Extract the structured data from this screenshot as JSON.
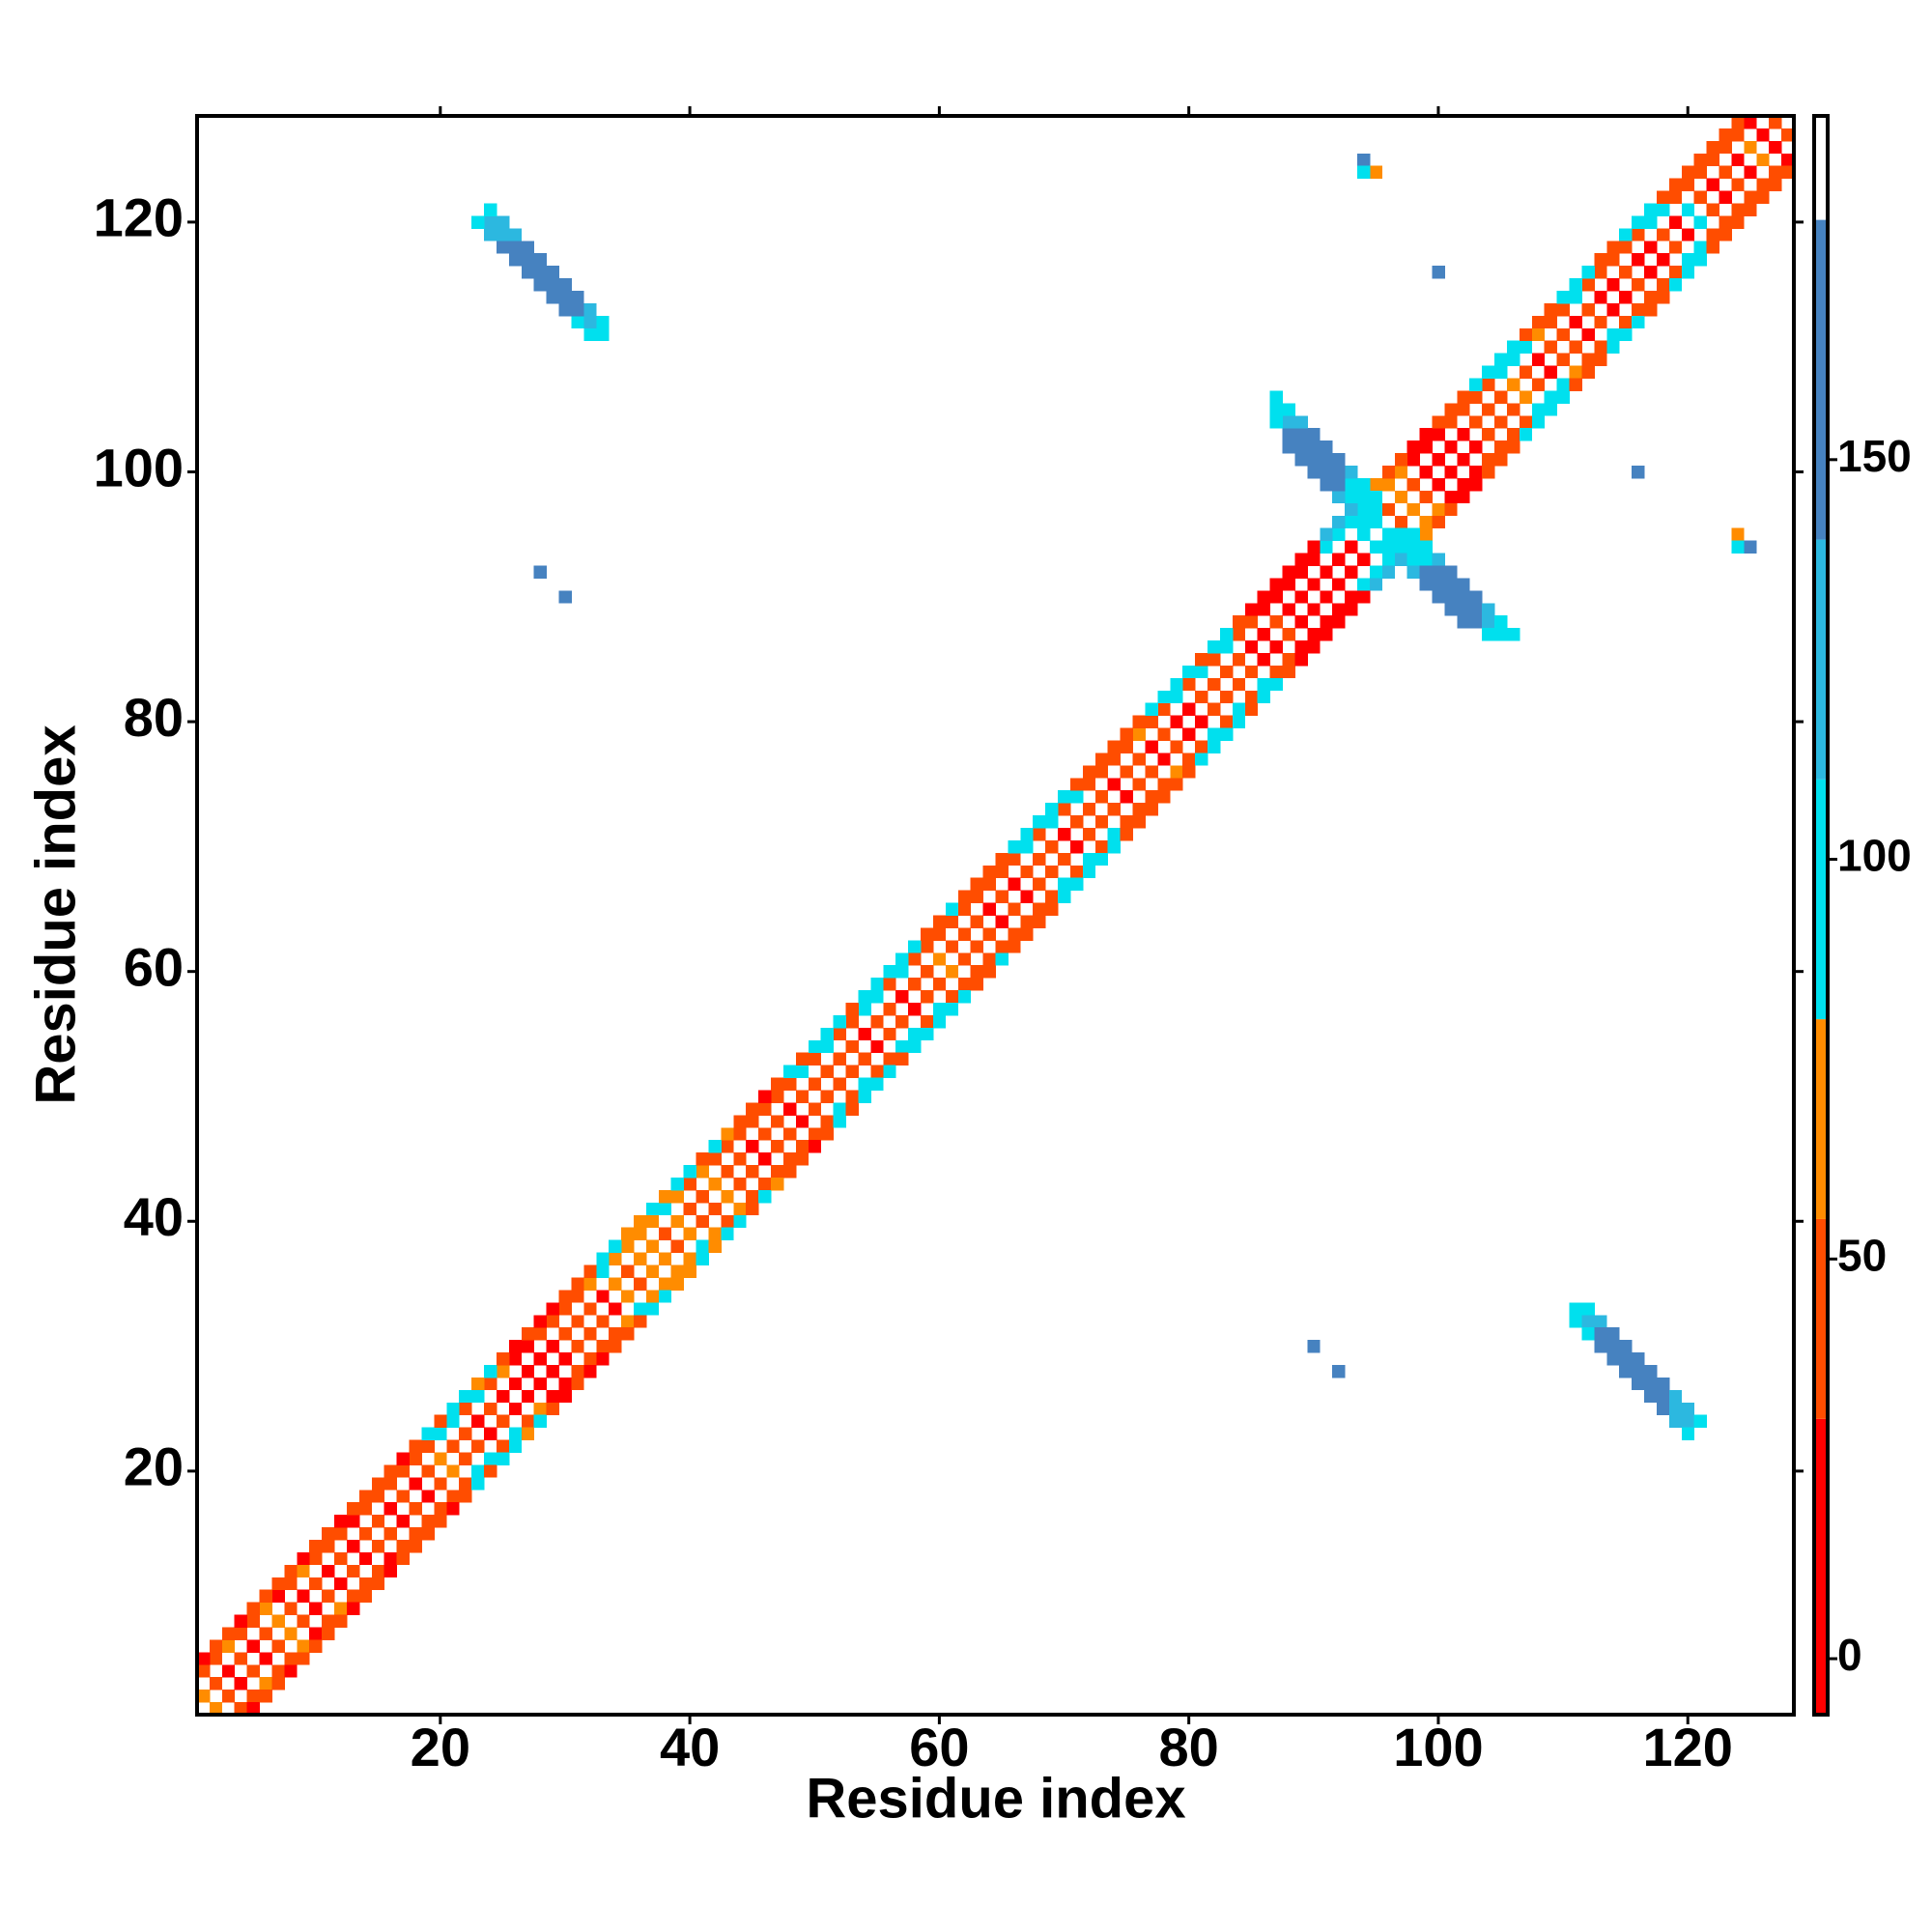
{
  "chart_data": {
    "type": "heatmap",
    "xlabel": "Residue index",
    "ylabel": "Residue index",
    "xlim": [
      0.5,
      128.5
    ],
    "ylim": [
      0.5,
      128.5
    ],
    "xticks": [
      20,
      40,
      60,
      80,
      100,
      120
    ],
    "yticks": [
      20,
      40,
      60,
      80,
      100,
      120
    ],
    "symmetric": true,
    "band": [
      {
        "offset": 1,
        "values": [
          65,
          40,
          10,
          40,
          10,
          40,
          65,
          40,
          10,
          40,
          10,
          40,
          10,
          40,
          40,
          10,
          40,
          10,
          40,
          65,
          40,
          40,
          10,
          40,
          10,
          10,
          10,
          10,
          10,
          40,
          40,
          40,
          10,
          65,
          40,
          65,
          65,
          40,
          65,
          40,
          40,
          65,
          40,
          40,
          10,
          40,
          40,
          10,
          40,
          40,
          40,
          40,
          40,
          10,
          40,
          40,
          10,
          40,
          40,
          65,
          40,
          40,
          40,
          10,
          40,
          10,
          40,
          40,
          40,
          10,
          40,
          40,
          40,
          10,
          40,
          40,
          10,
          40,
          10,
          10,
          40,
          40,
          40,
          40,
          10,
          10,
          40,
          10,
          10,
          10,
          10,
          10,
          10,
          95,
          10,
          40,
          65,
          40,
          10,
          10,
          10,
          10,
          40,
          40,
          40,
          65,
          40,
          10,
          40,
          40,
          10,
          40,
          10,
          10,
          40,
          10,
          10,
          40,
          10,
          95,
          40,
          10,
          40,
          10,
          65,
          10,
          40
        ]
      },
      {
        "offset": 3,
        "values": [
          40,
          40,
          65,
          40,
          40,
          65,
          10,
          40,
          65,
          40,
          40,
          40,
          10,
          40,
          40,
          40,
          40,
          40,
          40,
          95,
          95,
          40,
          95,
          40,
          65,
          10,
          10,
          40,
          40,
          40,
          40,
          65,
          95,
          65,
          65,
          65,
          65,
          95,
          65,
          40,
          65,
          40,
          40,
          40,
          40,
          40,
          40,
          40,
          95,
          40,
          95,
          40,
          40,
          95,
          95,
          40,
          95,
          40,
          40,
          40,
          40,
          40,
          40,
          40,
          40,
          40,
          95,
          40,
          95,
          40,
          95,
          40,
          40,
          40,
          40,
          65,
          40,
          40,
          95,
          40,
          95,
          40,
          95,
          40,
          40,
          10,
          10,
          10,
          10,
          10,
          95,
          95,
          95,
          95,
          65,
          65,
          65,
          10,
          10,
          10,
          40,
          40,
          40,
          40,
          95,
          95,
          95,
          65,
          40,
          40,
          95,
          40,
          40,
          40,
          40,
          40,
          95,
          95,
          40,
          40,
          40,
          40,
          40,
          40,
          10
        ]
      },
      {
        "offset": 4,
        "values": [
          10,
          40,
          40,
          10,
          40,
          40,
          40,
          40,
          10,
          40,
          40,
          10,
          40,
          40,
          40,
          40,
          10,
          40,
          95,
          40,
          95,
          95,
          65,
          95,
          40,
          10,
          40,
          10,
          10,
          40,
          40,
          40,
          95,
          95,
          65,
          65,
          95,
          65,
          95,
          95,
          40,
          95,
          65,
          40,
          40,
          10,
          40,
          95,
          40,
          95,
          95,
          95,
          40,
          95,
          95,
          95,
          95,
          95,
          40,
          40,
          95,
          40,
          40,
          40,
          40,
          95,
          95,
          95,
          95,
          95,
          40,
          40,
          40,
          40,
          40,
          40,
          95,
          95,
          95,
          95,
          40,
          95,
          95,
          40,
          10,
          10,
          10,
          10,
          10,
          10,
          130,
          130,
          130,
          40,
          65,
          40,
          40,
          10,
          10,
          40,
          40,
          40,
          95,
          95,
          95,
          95,
          40,
          40,
          40,
          95,
          95,
          95,
          40,
          40,
          95,
          95,
          95,
          40,
          40,
          40,
          40,
          40,
          40,
          40
        ]
      }
    ],
    "cells": [
      [
        111,
        33,
        95
      ],
      [
        112,
        33,
        95
      ],
      [
        111,
        32,
        95
      ],
      [
        112,
        32,
        130
      ],
      [
        113,
        32,
        130
      ],
      [
        112,
        31,
        95
      ],
      [
        113,
        31,
        160
      ],
      [
        114,
        31,
        160
      ],
      [
        113,
        30,
        160
      ],
      [
        114,
        30,
        160
      ],
      [
        115,
        30,
        160
      ],
      [
        114,
        29,
        160
      ],
      [
        115,
        29,
        160
      ],
      [
        116,
        29,
        160
      ],
      [
        115,
        28,
        160
      ],
      [
        116,
        28,
        160
      ],
      [
        117,
        28,
        160
      ],
      [
        116,
        27,
        160
      ],
      [
        117,
        27,
        160
      ],
      [
        118,
        27,
        160
      ],
      [
        117,
        26,
        160
      ],
      [
        118,
        26,
        160
      ],
      [
        119,
        26,
        130
      ],
      [
        118,
        25,
        160
      ],
      [
        119,
        25,
        130
      ],
      [
        120,
        25,
        130
      ],
      [
        119,
        24,
        130
      ],
      [
        120,
        24,
        130
      ],
      [
        121,
        24,
        95
      ],
      [
        120,
        23,
        95
      ],
      [
        96,
        95,
        95
      ],
      [
        97,
        95,
        95
      ],
      [
        98,
        95,
        95
      ],
      [
        96,
        94,
        95
      ],
      [
        97,
        94,
        95
      ],
      [
        98,
        94,
        95
      ],
      [
        99,
        94,
        95
      ],
      [
        97,
        93,
        130
      ],
      [
        98,
        93,
        95
      ],
      [
        99,
        93,
        95
      ],
      [
        100,
        93,
        130
      ],
      [
        98,
        92,
        130
      ],
      [
        99,
        92,
        160
      ],
      [
        100,
        92,
        160
      ],
      [
        101,
        92,
        160
      ],
      [
        99,
        91,
        160
      ],
      [
        100,
        91,
        160
      ],
      [
        101,
        91,
        160
      ],
      [
        102,
        91,
        160
      ],
      [
        100,
        90,
        160
      ],
      [
        101,
        90,
        160
      ],
      [
        102,
        90,
        160
      ],
      [
        103,
        90,
        160
      ],
      [
        101,
        89,
        160
      ],
      [
        102,
        89,
        160
      ],
      [
        103,
        89,
        160
      ],
      [
        104,
        89,
        130
      ],
      [
        102,
        88,
        160
      ],
      [
        103,
        88,
        160
      ],
      [
        104,
        88,
        130
      ],
      [
        105,
        88,
        95
      ],
      [
        104,
        87,
        95
      ],
      [
        105,
        87,
        95
      ],
      [
        106,
        87,
        95
      ],
      [
        125,
        94,
        160
      ],
      [
        124,
        95,
        65
      ],
      [
        124,
        94,
        95
      ],
      [
        116,
        100,
        160
      ],
      [
        92,
        28,
        160
      ],
      [
        90,
        30,
        160
      ]
    ],
    "colorbar": {
      "lim": [
        -7,
        193
      ],
      "ticks": [
        0,
        50,
        100,
        150
      ],
      "bins": [
        -7,
        30,
        55,
        80,
        110,
        140,
        180,
        193
      ],
      "colors": [
        "#ff0000",
        "#ff4d00",
        "#ff8c00",
        "#00e0ee",
        "#2cb8e0",
        "#4682c0",
        "#ffffff"
      ]
    }
  }
}
